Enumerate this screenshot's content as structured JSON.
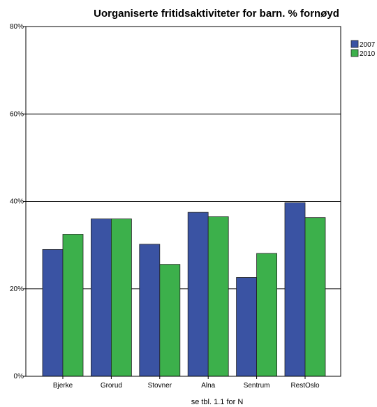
{
  "chart_data": {
    "type": "bar",
    "title": "Uorganiserte fritidsaktiviteter for barn. % fornøyd",
    "xlabel": "se tbl. 1.1 for N",
    "ylabel": "",
    "categories": [
      "Bjerke",
      "Grorud",
      "Stovner",
      "Alna",
      "Sentrum",
      "RestOslo"
    ],
    "series": [
      {
        "name": "2007",
        "values": [
          29,
          36,
          30.2,
          37.5,
          22.6,
          39.7
        ],
        "color": "#3a53a3"
      },
      {
        "name": "2010",
        "values": [
          32.5,
          36,
          25.6,
          36.5,
          28.1,
          36.3
        ],
        "color": "#3cb04b"
      }
    ],
    "ylim": [
      0,
      80
    ],
    "yticks": [
      0,
      20,
      40,
      60,
      80
    ],
    "ytick_labels": [
      "0%",
      "20%",
      "40%",
      "60%",
      "80%"
    ],
    "grid": true,
    "legend": "top-right"
  }
}
